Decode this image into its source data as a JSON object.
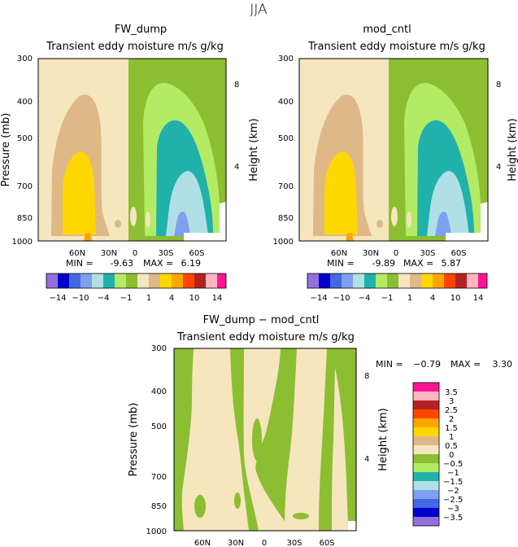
{
  "page_title": "JJA",
  "colors": {
    "c1": "#9370db",
    "c2": "#0000cd",
    "c3": "#4169e1",
    "c4": "#7fa0ee",
    "c5": "#b0e0e6",
    "c6": "#20b2aa",
    "c7": "#b4eb64",
    "c8": "#8cbe32",
    "c9": "#f5e6be",
    "c10": "#deb887",
    "c11": "#ffd700",
    "c12": "#ffa500",
    "c13": "#ff4500",
    "c14": "#b22222",
    "c15": "#ffb6c1",
    "c16": "#ff1493"
  },
  "chart_data": [
    {
      "type": "contour",
      "title": "FW_dump",
      "subtitle": "Transient eddy moisture m/s g/kg",
      "ylabel": "Pressure (mb)",
      "ylabel_right": "Height (km)",
      "yticks": [
        "300",
        "400",
        "500",
        "700",
        "850",
        "1000"
      ],
      "yticks_right": [
        "8",
        "4"
      ],
      "xticks": [
        "60N",
        "30N",
        "0",
        "30S",
        "60S"
      ],
      "min_label": "MIN =",
      "min_value": "-9.63",
      "max_label": "MAX =",
      "max_value": "6.19"
    },
    {
      "type": "contour",
      "title": "mod_cntl",
      "subtitle": "Transient eddy moisture m/s g/kg",
      "ylabel": "Pressure (mb)",
      "ylabel_right": "Height (km)",
      "yticks": [
        "300",
        "400",
        "500",
        "700",
        "850",
        "1000"
      ],
      "yticks_right": [
        "8",
        "4"
      ],
      "xticks": [
        "60N",
        "30N",
        "0",
        "30S",
        "60S"
      ],
      "min_label": "MIN =",
      "min_value": "-9.89",
      "max_label": "MAX =",
      "max_value": "5.87"
    },
    {
      "type": "contour",
      "title": "FW_dump − mod_cntl",
      "subtitle": "Transient eddy moisture m/s g/kg",
      "ylabel": "Pressure (mb)",
      "ylabel_right": "Height (km)",
      "yticks": [
        "300",
        "400",
        "500",
        "700",
        "850",
        "1000"
      ],
      "yticks_right": [
        "8",
        "4"
      ],
      "xticks": [
        "60N",
        "30N",
        "0",
        "30S",
        "60S"
      ],
      "min_label": "MIN =",
      "min_value": "−0.79",
      "max_label": "MAX =",
      "max_value": "3.30"
    }
  ],
  "colorbar_top": {
    "labels": [
      "−14",
      "−10",
      "−4",
      "−1",
      "1",
      "4",
      "10",
      "14"
    ]
  },
  "colorbar_bottom": {
    "labels": [
      "3.5",
      "3",
      "2.5",
      "2",
      "1.5",
      "1",
      "0.5",
      "0",
      "−0.5",
      "−1",
      "−1.5",
      "−2",
      "−2.5",
      "−3",
      "−3.5"
    ]
  }
}
